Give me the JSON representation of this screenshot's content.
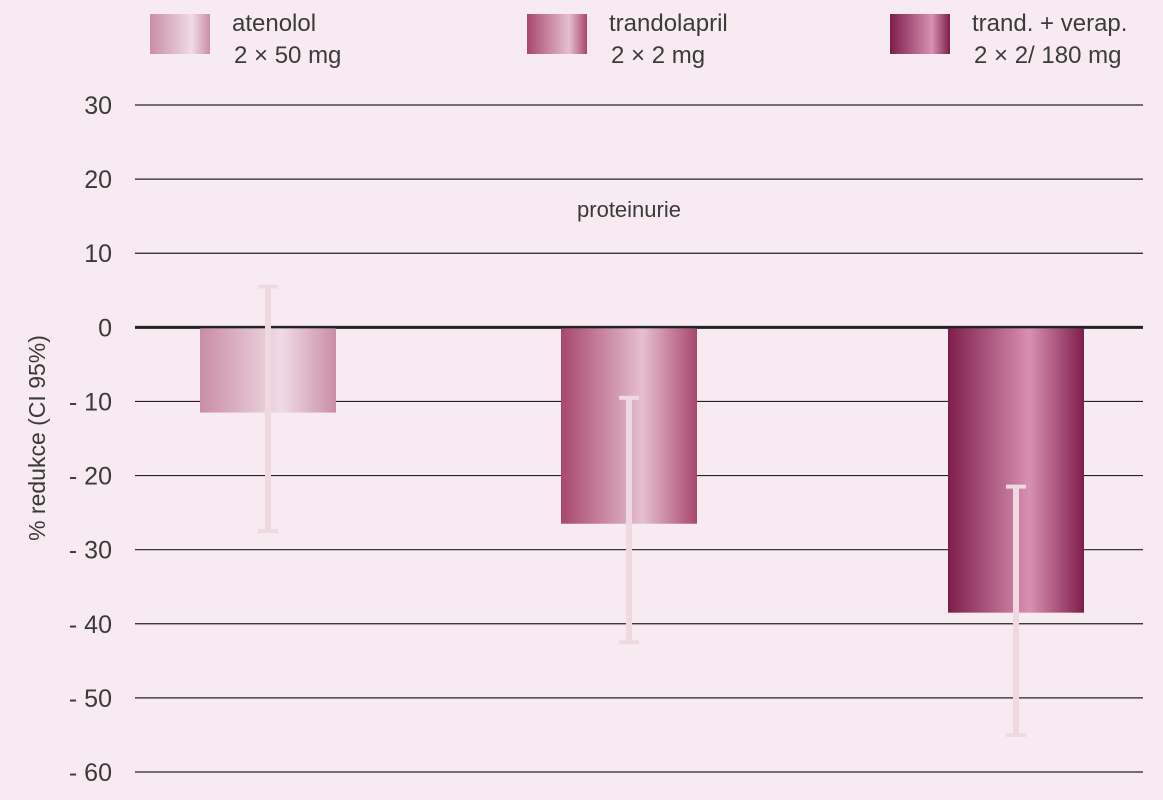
{
  "chart_data": {
    "type": "bar",
    "title": "",
    "annotation": "proteinurie",
    "xlabel": "",
    "ylabel": "% redukce (CI 95%)",
    "ylim": [
      -60,
      30
    ],
    "yticks": [
      30,
      20,
      10,
      0,
      -10,
      -20,
      -30,
      -40,
      -50,
      -60
    ],
    "ytick_labels": [
      "30",
      "20",
      "10",
      "0",
      "- 10",
      "- 20",
      "- 30",
      "- 40",
      "- 50",
      "- 60"
    ],
    "grid": true,
    "legend_position": "top",
    "categories": [
      "atenolol",
      "trandolapril",
      "trand. + verap."
    ],
    "series": [
      {
        "name": "atenolol",
        "dose": "2 × 50 mg",
        "value": -11.5,
        "ci": [
          -27.5,
          5.5
        ],
        "color_dark": "#c98da6",
        "color_light": "#f0dbe4"
      },
      {
        "name": "trandolapril",
        "dose": "2 × 2 mg",
        "value": -26.5,
        "ci": [
          -42.5,
          -9.5
        ],
        "color_dark": "#a8476e",
        "color_light": "#e5bfcf"
      },
      {
        "name": "trand. + verap.",
        "dose": "2 × 2/ 180 mg",
        "value": -38.5,
        "ci": [
          -55.0,
          -21.5
        ],
        "color_dark": "#7d1e4b",
        "color_light": "#d890b2"
      }
    ],
    "errorbar_color": "#f0d8e1",
    "background": "#f7ebf1",
    "gridline_color": "#222222"
  }
}
